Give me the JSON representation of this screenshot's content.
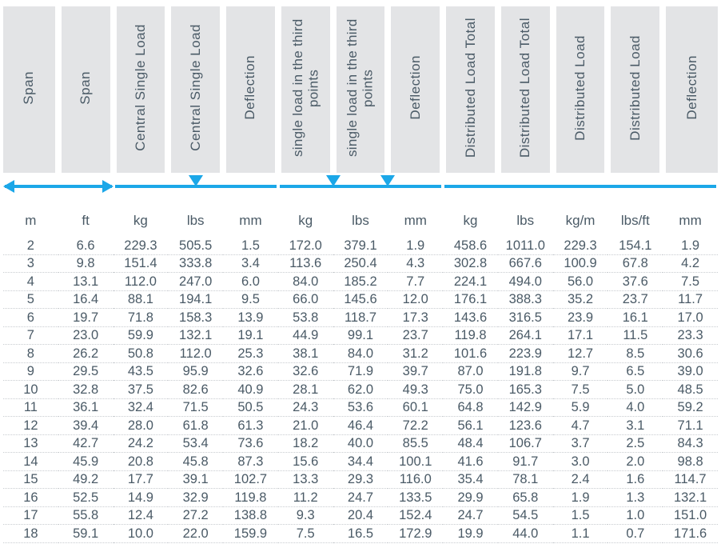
{
  "colors": {
    "accent": "#1ba7e8",
    "header_bg": "#e3e4e6",
    "text": "#4a5a66",
    "dotted": "#c9ccd0",
    "background": "#ffffff"
  },
  "typography": {
    "font_family": "Arial",
    "header_fontsize_pt": 13,
    "units_fontsize_pt": 13,
    "cell_fontsize_pt": 12
  },
  "columns": [
    {
      "header": "Span",
      "unit": "m"
    },
    {
      "header": "Span",
      "unit": "ft"
    },
    {
      "header": "Central Single Load",
      "unit": "kg"
    },
    {
      "header": "Central Single Load",
      "unit": "lbs"
    },
    {
      "header": "Deflection",
      "unit": "mm"
    },
    {
      "header": "single load in the third points",
      "unit": "kg",
      "multiline": true
    },
    {
      "header": "single load in the third points",
      "unit": "lbs",
      "multiline": true
    },
    {
      "header": "Deflection",
      "unit": "mm"
    },
    {
      "header": "Distributed Load Total",
      "unit": "kg"
    },
    {
      "header": "Distributed Load Total",
      "unit": "lbs"
    },
    {
      "header": "Distributed Load",
      "unit": "kg/m"
    },
    {
      "header": "Distributed Load",
      "unit": "lbs/ft"
    },
    {
      "header": "Deflection",
      "unit": "mm"
    }
  ],
  "icon_groups": [
    {
      "type": "double_arrow",
      "span_cols": [
        0,
        1
      ]
    },
    {
      "type": "center_triangle",
      "span_cols": [
        2,
        3,
        4
      ],
      "tri_positions_pct": [
        50
      ]
    },
    {
      "type": "third_triangles",
      "span_cols": [
        5,
        6,
        7
      ],
      "tri_positions_pct": [
        33,
        67
      ]
    },
    {
      "type": "plain_line",
      "span_cols": [
        8,
        9,
        10,
        11,
        12
      ]
    }
  ],
  "rows": [
    [
      "2",
      "6.6",
      "229.3",
      "505.5",
      "1.5",
      "172.0",
      "379.1",
      "1.9",
      "458.6",
      "1011.0",
      "229.3",
      "154.1",
      "1.9"
    ],
    [
      "3",
      "9.8",
      "151.4",
      "333.8",
      "3.4",
      "113.6",
      "250.4",
      "4.3",
      "302.8",
      "667.6",
      "100.9",
      "67.8",
      "4.2"
    ],
    [
      "4",
      "13.1",
      "112.0",
      "247.0",
      "6.0",
      "84.0",
      "185.2",
      "7.7",
      "224.1",
      "494.0",
      "56.0",
      "37.6",
      "7.5"
    ],
    [
      "5",
      "16.4",
      "88.1",
      "194.1",
      "9.5",
      "66.0",
      "145.6",
      "12.0",
      "176.1",
      "388.3",
      "35.2",
      "23.7",
      "11.7"
    ],
    [
      "6",
      "19.7",
      "71.8",
      "158.3",
      "13.9",
      "53.8",
      "118.7",
      "17.3",
      "143.6",
      "316.5",
      "23.9",
      "16.1",
      "17.0"
    ],
    [
      "7",
      "23.0",
      "59.9",
      "132.1",
      "19.1",
      "44.9",
      "99.1",
      "23.7",
      "119.8",
      "264.1",
      "17.1",
      "11.5",
      "23.3"
    ],
    [
      "8",
      "26.2",
      "50.8",
      "112.0",
      "25.3",
      "38.1",
      "84.0",
      "31.2",
      "101.6",
      "223.9",
      "12.7",
      "8.5",
      "30.6"
    ],
    [
      "9",
      "29.5",
      "43.5",
      "95.9",
      "32.6",
      "32.6",
      "71.9",
      "39.7",
      "87.0",
      "191.8",
      "9.7",
      "6.5",
      "39.0"
    ],
    [
      "10",
      "32.8",
      "37.5",
      "82.6",
      "40.9",
      "28.1",
      "62.0",
      "49.3",
      "75.0",
      "165.3",
      "7.5",
      "5.0",
      "48.5"
    ],
    [
      "11",
      "36.1",
      "32.4",
      "71.5",
      "50.5",
      "24.3",
      "53.6",
      "60.1",
      "64.8",
      "142.9",
      "5.9",
      "4.0",
      "59.2"
    ],
    [
      "12",
      "39.4",
      "28.0",
      "61.8",
      "61.3",
      "21.0",
      "46.4",
      "72.2",
      "56.1",
      "123.6",
      "4.7",
      "3.1",
      "71.1"
    ],
    [
      "13",
      "42.7",
      "24.2",
      "53.4",
      "73.6",
      "18.2",
      "40.0",
      "85.5",
      "48.4",
      "106.7",
      "3.7",
      "2.5",
      "84.3"
    ],
    [
      "14",
      "45.9",
      "20.8",
      "45.8",
      "87.3",
      "15.6",
      "34.4",
      "100.1",
      "41.6",
      "91.7",
      "3.0",
      "2.0",
      "98.8"
    ],
    [
      "15",
      "49.2",
      "17.7",
      "39.1",
      "102.7",
      "13.3",
      "29.3",
      "116.0",
      "35.4",
      "78.1",
      "2.4",
      "1.6",
      "114.7"
    ],
    [
      "16",
      "52.5",
      "14.9",
      "32.9",
      "119.8",
      "11.2",
      "24.7",
      "133.5",
      "29.9",
      "65.8",
      "1.9",
      "1.3",
      "132.1"
    ],
    [
      "17",
      "55.8",
      "12.4",
      "27.2",
      "138.8",
      "9.3",
      "20.4",
      "152.4",
      "24.7",
      "54.5",
      "1.5",
      "1.0",
      "151.0"
    ],
    [
      "18",
      "59.1",
      "10.0",
      "22.0",
      "159.9",
      "7.5",
      "16.5",
      "172.9",
      "19.9",
      "44.0",
      "1.1",
      "0.7",
      "171.6"
    ]
  ]
}
